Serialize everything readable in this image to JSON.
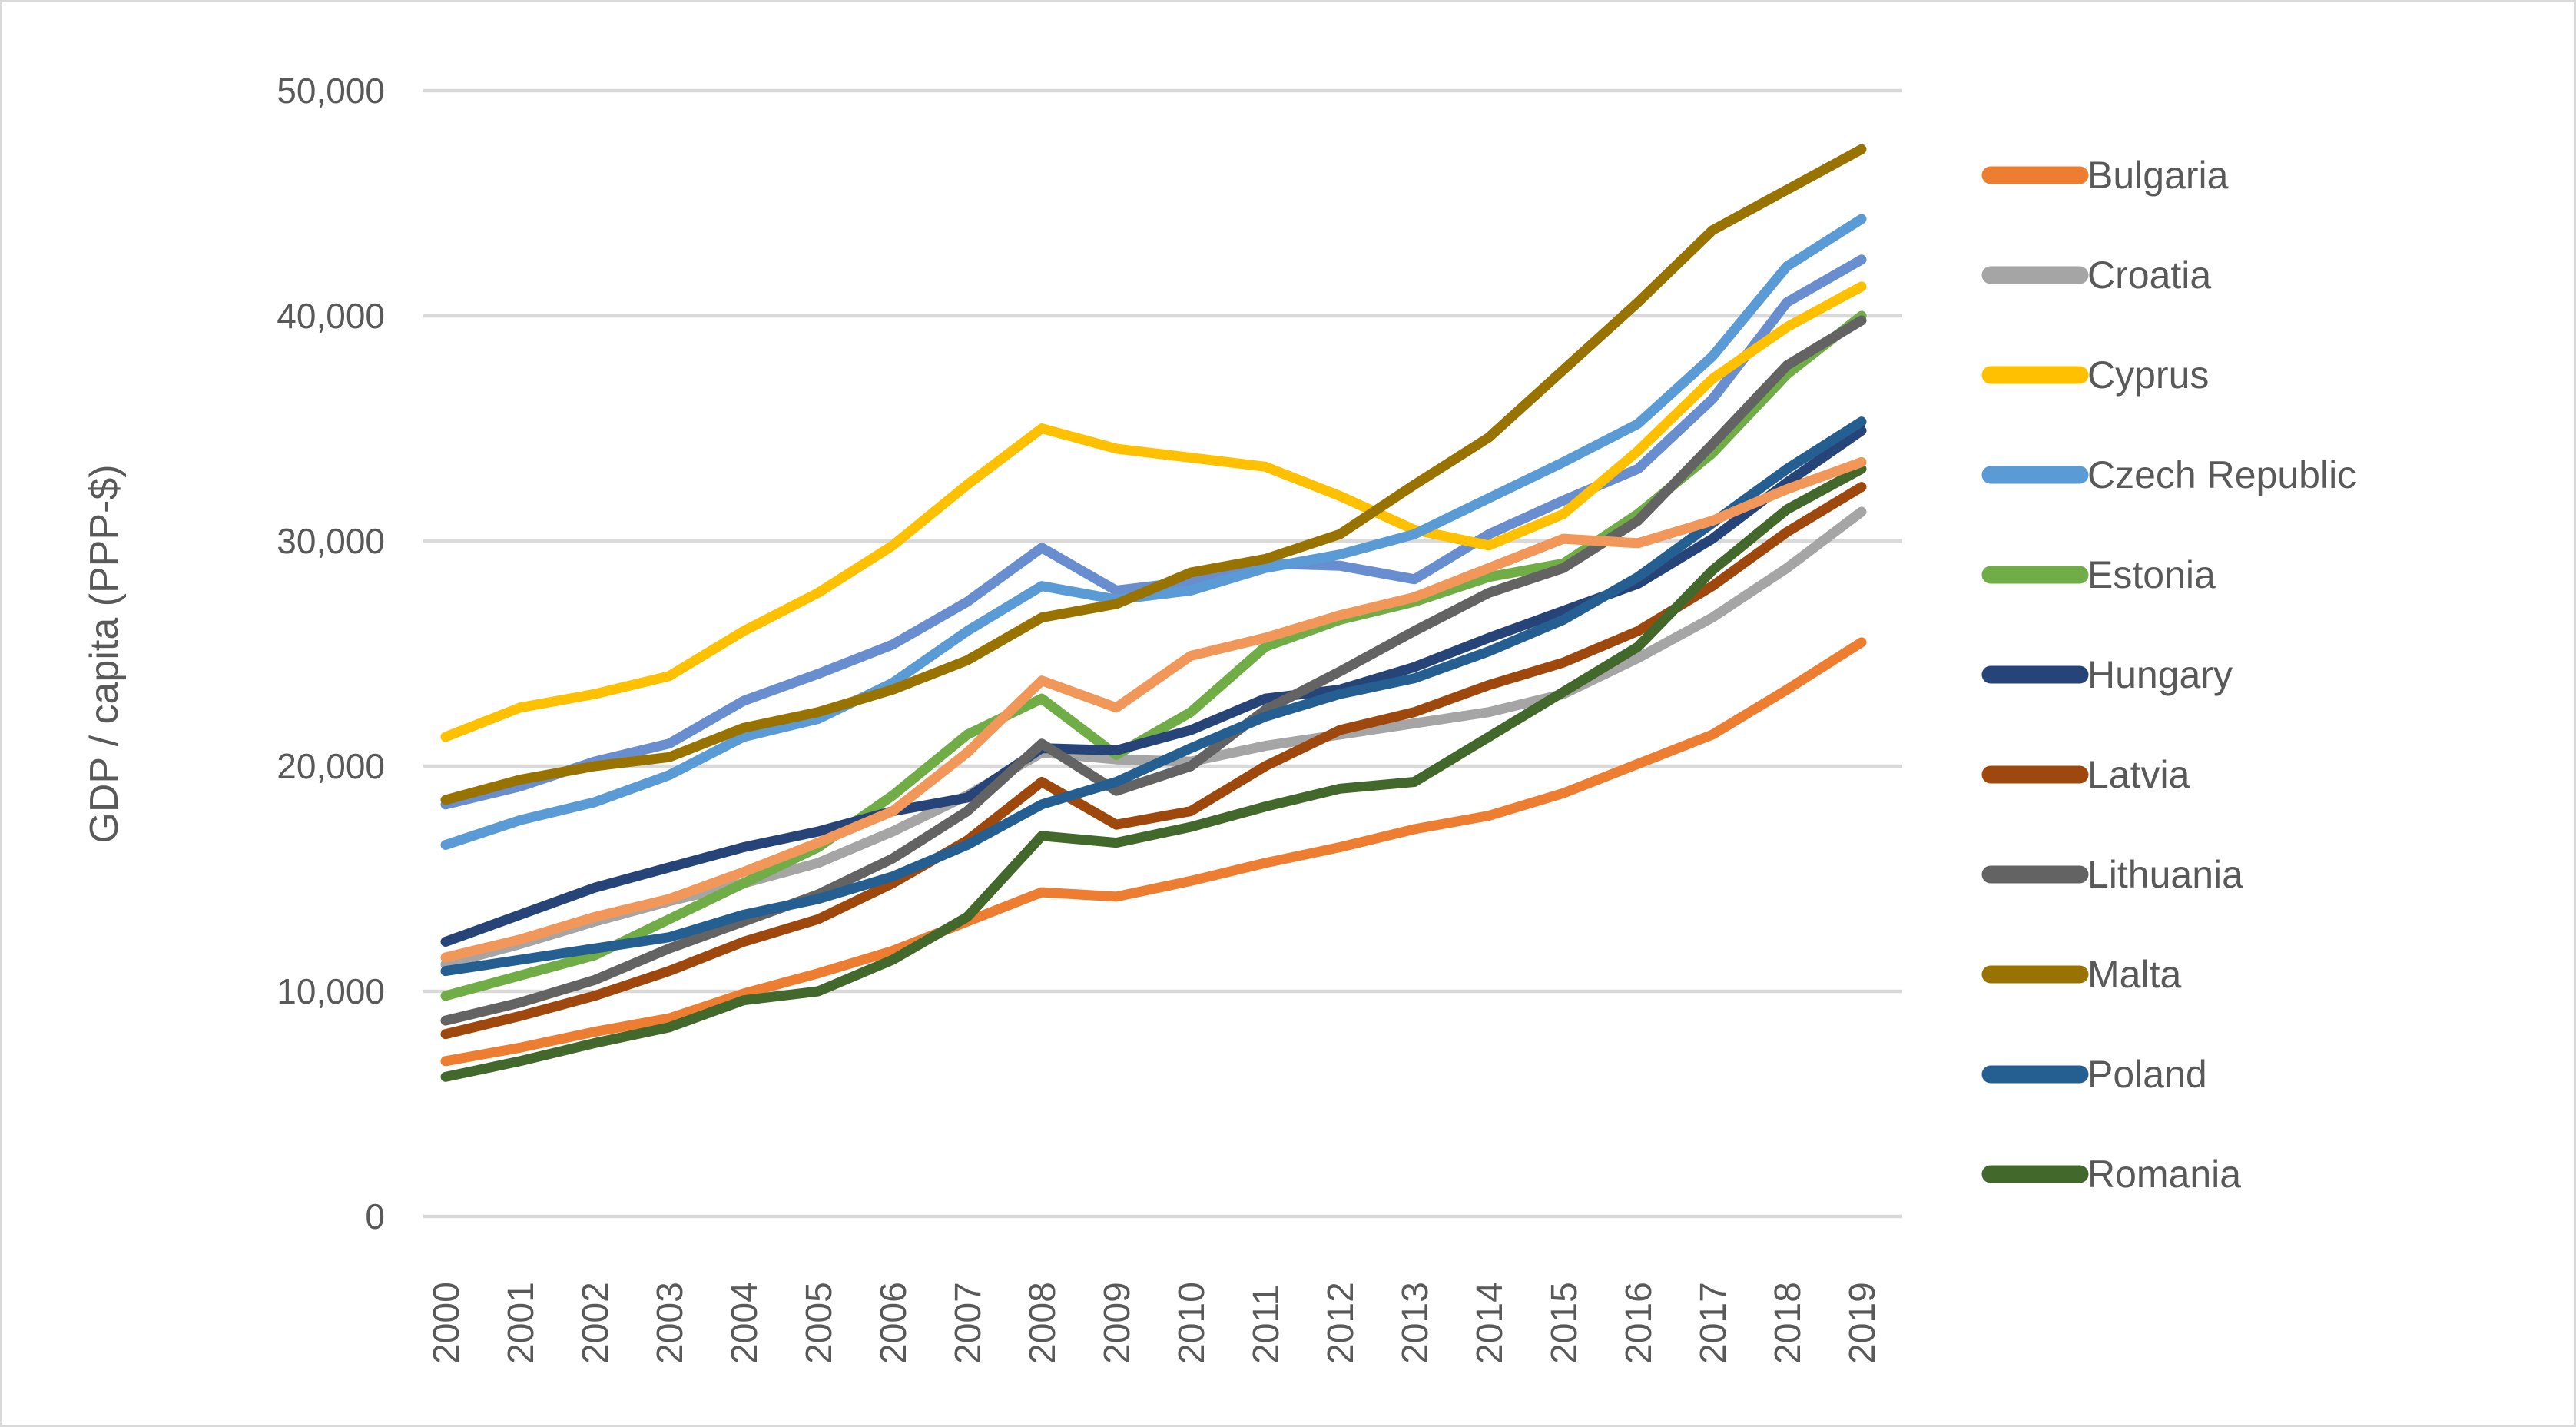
{
  "chart": {
    "y_axis_title": "GDP / capita (PPP-$)",
    "y_tick_labels": [
      "0",
      "10,000",
      "20,000",
      "30,000",
      "40,000",
      "50,000"
    ],
    "x_tick_labels": [
      "2000",
      "2001",
      "2002",
      "2003",
      "2004",
      "2005",
      "2006",
      "2007",
      "2008",
      "2009",
      "2010",
      "2011",
      "2012",
      "2013",
      "2014",
      "2015",
      "2016",
      "2017",
      "2018",
      "2019"
    ],
    "colors": {
      "grid": "#d9d9d9",
      "axis_text": "#595959",
      "background": "#ffffff",
      "frame_border": "#d9d9d9"
    },
    "legend_entries": [
      "Bulgaria",
      "Croatia",
      "Cyprus",
      "Czech Republic",
      "Estonia",
      "Hungary",
      "Latvia",
      "Lithuania",
      "Malta",
      "Poland",
      "Romania"
    ]
  },
  "chart_data": {
    "type": "line",
    "title": "",
    "xlabel": "",
    "ylabel": "GDP / capita (PPP-$)",
    "ylim": [
      0,
      50000
    ],
    "ytick_interval": 10000,
    "grid": true,
    "legend_position": "right",
    "x": [
      2000,
      2001,
      2002,
      2003,
      2004,
      2005,
      2006,
      2007,
      2008,
      2009,
      2010,
      2011,
      2012,
      2013,
      2014,
      2015,
      2016,
      2017,
      2018,
      2019
    ],
    "series": [
      {
        "key": "unlabeled-blue",
        "name": "",
        "in_legend": false,
        "color": "#698ED0",
        "values": [
          18300,
          19100,
          20200,
          21000,
          22900,
          24100,
          25400,
          27300,
          29700,
          27800,
          28200,
          29000,
          28900,
          28300,
          30300,
          31800,
          33200,
          36300,
          40600,
          42500
        ]
      },
      {
        "key": "bulgaria",
        "name": "Bulgaria",
        "in_legend": true,
        "color": "#ED7D31",
        "values": [
          6900,
          7500,
          8200,
          8800,
          9900,
          10800,
          11800,
          13100,
          14400,
          14200,
          14900,
          15700,
          16400,
          17200,
          17800,
          18800,
          20100,
          21400,
          23400,
          25500
        ]
      },
      {
        "key": "croatia",
        "name": "Croatia",
        "in_legend": true,
        "color": "#A5A5A5",
        "values": [
          11200,
          12100,
          13100,
          14000,
          14800,
          15700,
          17100,
          18700,
          20600,
          20300,
          20200,
          20900,
          21400,
          21900,
          22400,
          23200,
          24800,
          26600,
          28800,
          31300
        ]
      },
      {
        "key": "cyprus",
        "name": "Cyprus",
        "in_legend": true,
        "color": "#FFC000",
        "values": [
          21300,
          22600,
          23200,
          24000,
          26000,
          27700,
          29800,
          32500,
          35000,
          34100,
          33700,
          33300,
          32000,
          30500,
          29800,
          31200,
          34000,
          37200,
          39500,
          41300
        ]
      },
      {
        "key": "czech-republic",
        "name": "Czech Republic",
        "in_legend": true,
        "color": "#5B9BD5",
        "values": [
          16500,
          17600,
          18400,
          19600,
          21300,
          22100,
          23700,
          26000,
          28000,
          27400,
          27800,
          28800,
          29400,
          30300,
          31900,
          33500,
          35200,
          38200,
          42200,
          44300
        ]
      },
      {
        "key": "estonia",
        "name": "Estonia",
        "in_legend": true,
        "color": "#70AD47",
        "values": [
          9800,
          10700,
          11600,
          13200,
          14800,
          16400,
          18700,
          21400,
          23000,
          20500,
          22400,
          25300,
          26500,
          27300,
          28400,
          29000,
          31200,
          33900,
          37400,
          40000
        ]
      },
      {
        "key": "hungary",
        "name": "Hungary",
        "in_legend": true,
        "color": "#264478",
        "values": [
          12200,
          13400,
          14600,
          15500,
          16400,
          17100,
          18000,
          18600,
          20800,
          20700,
          21600,
          23000,
          23400,
          24400,
          25700,
          26900,
          28100,
          30100,
          32600,
          34900
        ]
      },
      {
        "key": "latvia",
        "name": "Latvia",
        "in_legend": true,
        "color": "#9E480E",
        "values": [
          8100,
          8900,
          9800,
          10900,
          12200,
          13200,
          14800,
          16700,
          19300,
          17400,
          18000,
          20000,
          21600,
          22400,
          23600,
          24600,
          26000,
          28000,
          30400,
          32400
        ]
      },
      {
        "key": "lithuania",
        "name": "Lithuania",
        "in_legend": true,
        "color": "#636363",
        "values": [
          8700,
          9500,
          10500,
          11900,
          13100,
          14300,
          15900,
          18000,
          21000,
          18900,
          20000,
          22500,
          24200,
          26000,
          27700,
          28800,
          30900,
          34300,
          37800,
          39800
        ]
      },
      {
        "key": "malta",
        "name": "Malta",
        "in_legend": true,
        "color": "#997300",
        "values": [
          18500,
          19400,
          20000,
          20400,
          21700,
          22400,
          23400,
          24700,
          26600,
          27200,
          28600,
          29200,
          30300,
          32500,
          34600,
          37600,
          40600,
          43800,
          45600,
          47400
        ]
      },
      {
        "key": "poland",
        "name": "Poland",
        "in_legend": true,
        "color": "#255E91",
        "values": [
          10900,
          11400,
          11900,
          12400,
          13400,
          14100,
          15100,
          16500,
          18300,
          19300,
          20800,
          22200,
          23200,
          23900,
          25100,
          26500,
          28400,
          30800,
          33200,
          35300
        ]
      },
      {
        "key": "romania",
        "name": "Romania",
        "in_legend": true,
        "color": "#43682B",
        "values": [
          6200,
          6900,
          7700,
          8400,
          9600,
          10000,
          11400,
          13300,
          16900,
          16600,
          17300,
          18200,
          19000,
          19300,
          21300,
          23300,
          25300,
          28700,
          31400,
          33200
        ]
      },
      {
        "key": "unlabeled-orange",
        "name": "",
        "in_legend": false,
        "color": "#F1975A",
        "values": [
          11500,
          12300,
          13300,
          14100,
          15300,
          16600,
          18000,
          20600,
          23800,
          22600,
          24900,
          25700,
          26700,
          27500,
          28800,
          30100,
          29900,
          30900,
          32300,
          33500
        ]
      }
    ]
  }
}
